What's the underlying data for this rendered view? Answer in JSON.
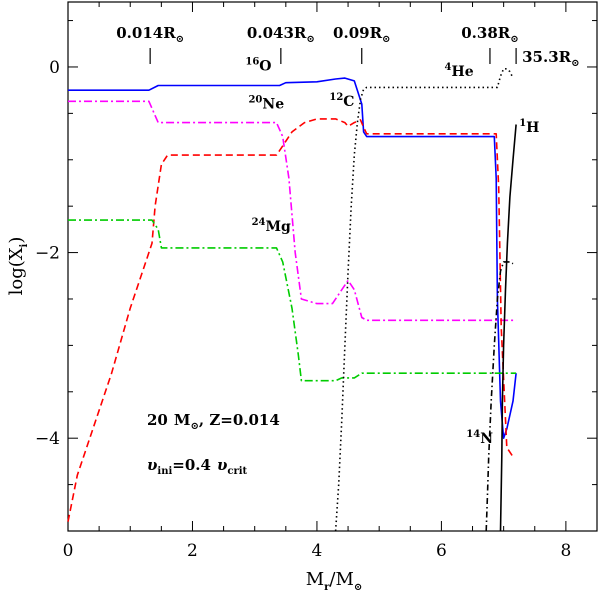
{
  "chart_data": {
    "type": "line",
    "title": "",
    "xlabel_main": "M",
    "xlabel_sub": "r",
    "xlabel_rest": "/M",
    "xlabel_sun": "⊙",
    "ylabel_main": "log(X",
    "ylabel_sub": "i",
    "ylabel_rest": ")",
    "xlim": [
      0,
      8.5
    ],
    "ylim": [
      -5,
      0.7
    ],
    "x_ticks": [
      0,
      2,
      4,
      6,
      8
    ],
    "y_ticks": [
      0,
      -2,
      -4
    ],
    "x_tick_labels": [
      "0",
      "2",
      "4",
      "6",
      "8"
    ],
    "y_tick_labels": [
      "0",
      "−2",
      "−4"
    ],
    "radius_markers": [
      {
        "x": 1.32,
        "label": "0.014R",
        "sun": "⊙"
      },
      {
        "x": 3.42,
        "label": "0.043R",
        "sun": "⊙"
      },
      {
        "x": 4.72,
        "label": "0.09R",
        "sun": "⊙"
      },
      {
        "x": 6.78,
        "label": "0.38R",
        "sun": "⊙"
      },
      {
        "x": 7.2,
        "label": "35.3R",
        "sun": "⊙"
      }
    ],
    "info_mass_num": "20",
    "info_mass_unit": "M",
    "info_sun": "⊙",
    "info_z": ", Z=0.014",
    "info_v": "υ",
    "info_v_sub": "ini",
    "info_mid": "=0.4",
    "info_vcrit": "υ",
    "info_vcrit_sub": "crit",
    "series": [
      {
        "name": "16O",
        "iso_mass": "16",
        "iso_symbol": "O",
        "color": "#0000ff",
        "dash": "",
        "x": [
          0,
          1.3,
          1.45,
          3.4,
          3.5,
          4.0,
          4.3,
          4.45,
          4.6,
          4.72,
          4.75,
          4.8,
          6.85,
          6.88,
          6.9,
          6.95,
          7.0,
          7.05,
          7.15,
          7.2
        ],
        "y": [
          -0.25,
          -0.25,
          -0.2,
          -0.2,
          -0.17,
          -0.16,
          -0.13,
          -0.12,
          -0.15,
          -0.4,
          -0.7,
          -0.75,
          -0.75,
          -1.2,
          -2.5,
          -3.6,
          -4.0,
          -3.9,
          -3.6,
          -3.3
        ]
      },
      {
        "name": "20Ne",
        "iso_mass": "20",
        "iso_symbol": "Ne",
        "color": "#ff00ff",
        "dash": "8 3 2 3",
        "x": [
          0,
          1.3,
          1.45,
          3.35,
          3.45,
          3.55,
          3.65,
          3.75,
          4.0,
          4.25,
          4.4,
          4.5,
          4.6,
          4.72,
          4.8,
          7.2
        ],
        "y": [
          -0.37,
          -0.37,
          -0.6,
          -0.6,
          -0.75,
          -1.2,
          -2.0,
          -2.5,
          -2.55,
          -2.55,
          -2.4,
          -2.3,
          -2.4,
          -2.7,
          -2.73,
          -2.73
        ]
      },
      {
        "name": "12C",
        "iso_mass": "12",
        "iso_symbol": "C",
        "color": "#ff0000",
        "dash": "7 4",
        "x": [
          0,
          0.15,
          0.4,
          0.7,
          1.0,
          1.2,
          1.35,
          1.4,
          1.5,
          1.6,
          3.35,
          3.45,
          3.6,
          3.8,
          4.0,
          4.3,
          4.45,
          4.5,
          4.6,
          4.7,
          4.75,
          4.8,
          6.88,
          6.92,
          6.96,
          7.05,
          7.15
        ],
        "y": [
          -4.9,
          -4.4,
          -3.9,
          -3.3,
          -2.6,
          -2.2,
          -1.9,
          -1.5,
          -1.05,
          -0.95,
          -0.95,
          -0.85,
          -0.7,
          -0.6,
          -0.56,
          -0.56,
          -0.6,
          -0.64,
          -0.6,
          -0.57,
          -0.65,
          -0.72,
          -0.72,
          -1.3,
          -2.8,
          -4.1,
          -4.2
        ]
      },
      {
        "name": "24Mg",
        "iso_mass": "24",
        "iso_symbol": "Mg",
        "color": "#00cc00",
        "dash": "8 3 2 3",
        "x": [
          0,
          1.35,
          1.45,
          1.5,
          3.35,
          3.45,
          3.6,
          3.7,
          3.75,
          4.3,
          4.4,
          4.6,
          4.72,
          4.8,
          7.2
        ],
        "y": [
          -1.65,
          -1.65,
          -1.75,
          -1.95,
          -1.95,
          -2.1,
          -2.6,
          -3.1,
          -3.38,
          -3.38,
          -3.35,
          -3.35,
          -3.3,
          -3.3,
          -3.3
        ]
      },
      {
        "name": "4He",
        "iso_mass": "4",
        "iso_symbol": "He",
        "color": "#000000",
        "dash": "1.5 3",
        "x": [
          4.3,
          4.35,
          4.4,
          4.45,
          4.5,
          4.55,
          4.6,
          4.65,
          4.7,
          4.75,
          4.8,
          6.9,
          6.95,
          7.0,
          7.05,
          7.1,
          7.15
        ],
        "y": [
          -5.0,
          -4.5,
          -3.8,
          -3.0,
          -2.2,
          -1.5,
          -0.95,
          -0.6,
          -0.35,
          -0.24,
          -0.22,
          -0.22,
          -0.1,
          -0.02,
          -0.02,
          -0.05,
          -0.12
        ]
      },
      {
        "name": "1H",
        "iso_mass": "1",
        "iso_symbol": "H",
        "color": "#000000",
        "dash": "",
        "x": [
          6.95,
          6.97,
          6.98,
          7.0,
          7.03,
          7.06,
          7.1,
          7.15,
          7.2
        ],
        "y": [
          -5.0,
          -4.2,
          -3.6,
          -3.0,
          -2.4,
          -1.9,
          -1.4,
          -1.0,
          -0.62
        ]
      },
      {
        "name": "14N",
        "iso_mass": "14",
        "iso_symbol": "N",
        "color": "#000000",
        "dash": "6 3 1.5 3",
        "x": [
          6.72,
          6.74,
          6.76,
          6.8,
          6.85,
          6.9,
          6.95,
          7.0,
          7.1,
          7.15
        ],
        "y": [
          -5.0,
          -4.6,
          -4.2,
          -3.6,
          -3.0,
          -2.5,
          -2.2,
          -2.1,
          -2.1,
          -2.12
        ]
      }
    ],
    "annotations": [
      {
        "series": "16O",
        "x": 2.85,
        "y": -0.04
      },
      {
        "series": "20Ne",
        "x": 2.9,
        "y": -0.45
      },
      {
        "series": "12C",
        "x": 4.2,
        "y": -0.42
      },
      {
        "series": "24Mg",
        "x": 2.95,
        "y": -1.77
      },
      {
        "series": "4He",
        "x": 6.05,
        "y": -0.1
      },
      {
        "series": "1H",
        "x": 7.25,
        "y": -0.7
      },
      {
        "series": "14N",
        "x": 6.4,
        "y": -4.05
      }
    ]
  }
}
